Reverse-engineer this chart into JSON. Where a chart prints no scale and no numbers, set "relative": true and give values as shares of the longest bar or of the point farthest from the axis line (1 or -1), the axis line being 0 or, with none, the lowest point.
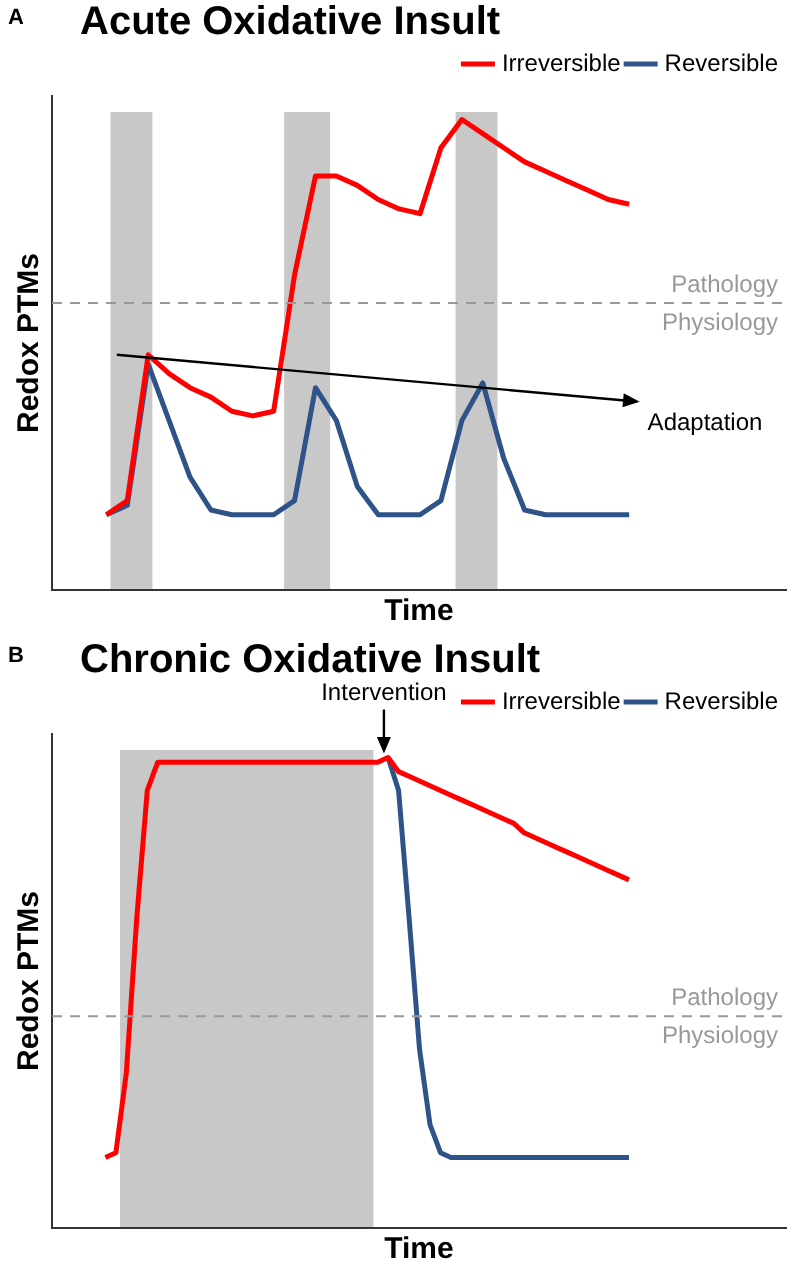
{
  "chart_data": [
    {
      "type": "line",
      "title": "Acute Oxidative Insult",
      "xlabel": "Time",
      "ylabel": "Redox PTMs",
      "relative": true,
      "grid": false,
      "legend": "top right",
      "marker": "none",
      "line_style": "solid",
      "categories": [
        null,
        null,
        null,
        null,
        null,
        null,
        null,
        null,
        null,
        null,
        null,
        null,
        null,
        null,
        null,
        null,
        null,
        null,
        null,
        null,
        null,
        null,
        null,
        null,
        null,
        null
      ],
      "series": [
        {
          "name": "Reversible",
          "color": "#2e5388",
          "values": [
            0.16,
            0.18,
            0.48,
            0.36,
            0.24,
            0.17,
            0.16,
            0.16,
            0.16,
            0.19,
            0.43,
            0.36,
            0.22,
            0.16,
            0.16,
            0.16,
            0.19,
            0.36,
            0.44,
            0.28,
            0.17,
            0.16,
            0.16,
            0.16,
            0.16,
            0.16
          ]
        },
        {
          "name": "Irreversible",
          "color": "#ff0000",
          "values": [
            0.16,
            0.19,
            0.5,
            0.46,
            0.43,
            0.41,
            0.38,
            0.37,
            0.38,
            0.67,
            0.88,
            0.88,
            0.86,
            0.83,
            0.81,
            0.8,
            0.94,
            1,
            0.97,
            0.94,
            0.91,
            0.89,
            0.87,
            0.85,
            0.83,
            0.82
          ]
        }
      ],
      "ref_lines": [
        {
          "axis": "y",
          "value": 0.61,
          "label": "Pathology",
          "color": "#999999",
          "line_style": "dashed"
        }
      ],
      "annotations": [
        "A",
        "Physiology",
        "Adaptation"
      ]
    },
    {
      "type": "line",
      "title": "Chronic Oxidative Insult",
      "xlabel": "Time",
      "ylabel": "Redox PTMs",
      "relative": true,
      "grid": false,
      "legend": "top right",
      "marker": "none",
      "line_style": "solid",
      "categories": [
        null,
        null,
        null,
        null,
        null,
        null,
        null,
        null,
        null,
        null,
        null,
        null,
        null,
        null,
        null,
        null,
        null,
        null,
        null,
        null,
        null,
        null,
        null,
        null,
        null,
        null,
        null,
        null,
        null,
        null,
        null,
        null,
        null,
        null,
        null,
        null,
        null,
        null,
        null,
        null,
        null,
        null,
        null,
        null,
        null,
        null,
        null,
        null,
        null,
        null,
        null
      ],
      "series": [
        {
          "name": "Reversible",
          "color": "#2e5388",
          "values": [
            null,
            null,
            null,
            null,
            null,
            null,
            null,
            null,
            null,
            null,
            null,
            null,
            null,
            null,
            null,
            null,
            null,
            null,
            null,
            null,
            null,
            null,
            null,
            null,
            null,
            null,
            null,
            1,
            0.93,
            0.66,
            0.38,
            0.22,
            0.16,
            0.15,
            0.15,
            0.15,
            0.15,
            0.15,
            0.15,
            0.15,
            0.15,
            0.15,
            0.15,
            0.15,
            0.15,
            0.15,
            0.15,
            0.15,
            0.15,
            0.15,
            0.15
          ]
        },
        {
          "name": "Irreversible",
          "color": "#ff0000",
          "values": [
            0.15,
            0.16,
            0.33,
            0.66,
            0.93,
            0.99,
            0.99,
            0.99,
            0.99,
            0.99,
            0.99,
            0.99,
            0.99,
            0.99,
            0.99,
            0.99,
            0.99,
            0.99,
            0.99,
            0.99,
            0.99,
            0.99,
            0.99,
            0.99,
            0.99,
            0.99,
            0.99,
            1,
            0.97,
            0.96,
            0.95,
            0.94,
            0.93,
            0.92,
            0.91,
            0.9,
            0.89,
            0.88,
            0.87,
            0.86,
            0.84,
            0.83,
            0.82,
            0.81,
            0.8,
            0.79,
            0.78,
            0.77,
            0.76,
            0.75,
            0.74
          ]
        }
      ],
      "ref_lines": [
        {
          "axis": "y",
          "value": 0.45,
          "label": "Pathology",
          "color": "#999999",
          "line_style": "dashed"
        }
      ],
      "annotations": [
        "B",
        "Physiology",
        "Intervention"
      ]
    }
  ]
}
